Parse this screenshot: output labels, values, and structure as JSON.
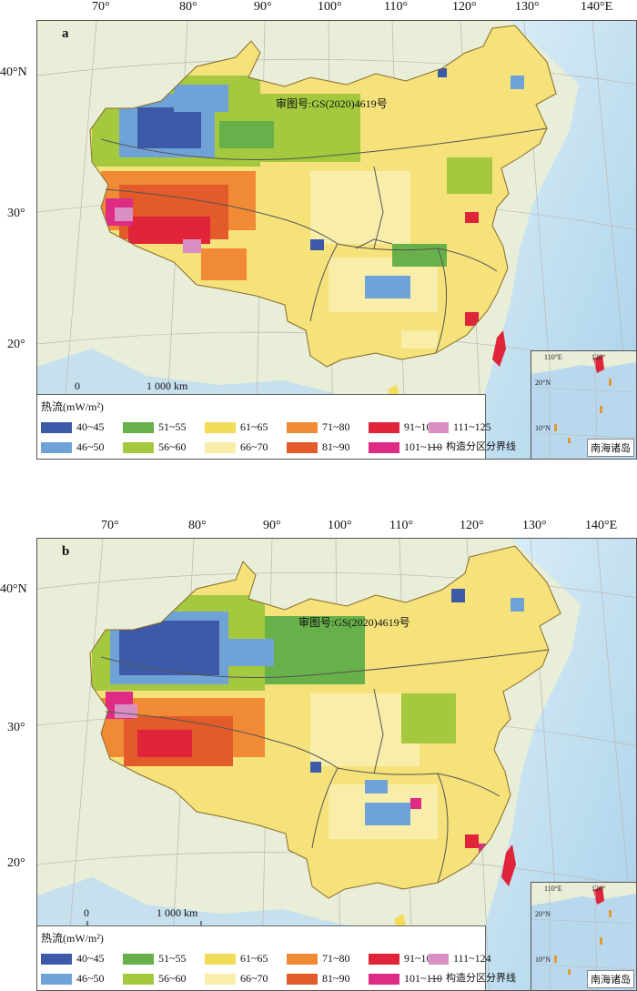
{
  "panels": [
    {
      "label": "a",
      "approval_number": "审图号:GS(2020)4619号",
      "scale_bar": {
        "start": "0",
        "end": "1 000 km"
      },
      "longitude_labels": [
        "70°",
        "80°",
        "90°",
        "100°",
        "110°",
        "120°",
        "130°",
        "140°E"
      ],
      "latitude_labels": [
        "40°N",
        "30°",
        "20°"
      ],
      "legend": {
        "title": "热流(mW/m²)",
        "classes": [
          {
            "label": "40~45",
            "color": "#3d5aa8"
          },
          {
            "label": "46~50",
            "color": "#6fa3d8"
          },
          {
            "label": "51~55",
            "color": "#67b04a"
          },
          {
            "label": "56~60",
            "color": "#a4c93e"
          },
          {
            "label": "61~65",
            "color": "#f2dc5a"
          },
          {
            "label": "66~70",
            "color": "#f8eeaa"
          },
          {
            "label": "71~80",
            "color": "#f08a35"
          },
          {
            "label": "81~90",
            "color": "#e35a2b"
          },
          {
            "label": "91~100",
            "color": "#e0243a"
          },
          {
            "label": "101~110",
            "color": "#de2b86"
          },
          {
            "label": "111~125",
            "color": "#d98fc4"
          }
        ],
        "boundary_label": "构造分区分界线"
      },
      "inset": {
        "label": "南海诸岛",
        "lon_label": "110°E",
        "lon_label2": "120°",
        "lat_labels": [
          "20°N",
          "10°N"
        ]
      }
    },
    {
      "label": "b",
      "approval_number": "审图号:GS(2020)4619号",
      "scale_bar": {
        "start": "0",
        "end": "1 000 km"
      },
      "longitude_labels": [
        "70°",
        "80°",
        "90°",
        "100°",
        "110°",
        "120°",
        "130°",
        "140°E"
      ],
      "latitude_labels": [
        "40°N",
        "30°",
        "20°"
      ],
      "legend": {
        "title": "热流(mW/m²)",
        "classes": [
          {
            "label": "40~45",
            "color": "#3d5aa8"
          },
          {
            "label": "46~50",
            "color": "#6fa3d8"
          },
          {
            "label": "51~55",
            "color": "#67b04a"
          },
          {
            "label": "56~60",
            "color": "#a4c93e"
          },
          {
            "label": "61~65",
            "color": "#f2dc5a"
          },
          {
            "label": "66~70",
            "color": "#f8eeaa"
          },
          {
            "label": "71~80",
            "color": "#f08a35"
          },
          {
            "label": "81~90",
            "color": "#e35a2b"
          },
          {
            "label": "91~100",
            "color": "#e0243a"
          },
          {
            "label": "101~110",
            "color": "#de2b86"
          },
          {
            "label": "111~124",
            "color": "#d98fc4"
          }
        ],
        "boundary_label": "构造分区分界线"
      },
      "inset": {
        "label": "南海诸岛",
        "lon_label": "110°E",
        "lon_label2": "120°",
        "lat_labels": [
          "20°N",
          "10°N"
        ]
      }
    }
  ]
}
